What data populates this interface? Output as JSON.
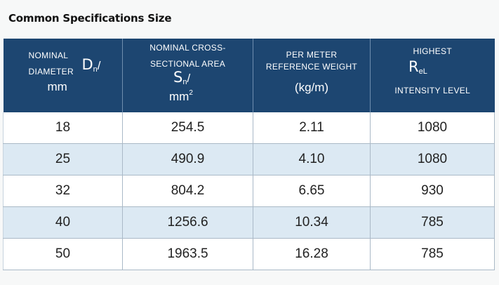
{
  "page": {
    "title": "Common Specifications Size"
  },
  "table": {
    "headers": {
      "diameter": {
        "line1": "NOMINAL",
        "line2": "DIAMETER",
        "symbol": "D",
        "symbol_sub": "n",
        "slash": "/",
        "unit": "mm"
      },
      "area": {
        "line1": "NOMINAL CROSS-",
        "line2": "SECTIONAL AREA",
        "symbol": "S",
        "symbol_sub": "n",
        "slash": "/",
        "unit": "mm",
        "unit_sup": "2"
      },
      "weight": {
        "line1": "PER METER",
        "line2": "REFERENCE WEIGHT",
        "unit": "(kg/m)"
      },
      "strength": {
        "line1": "HIGHEST",
        "symbol": "R",
        "symbol_sub": "eL",
        "line3": "INTENSITY LEVEL"
      }
    },
    "rows": [
      [
        "18",
        "254.5",
        "2.11",
        "1080"
      ],
      [
        "25",
        "490.9",
        "4.10",
        "1080"
      ],
      [
        "32",
        "804.2",
        "6.65",
        "930"
      ],
      [
        "40",
        "1256.6",
        "10.34",
        "785"
      ],
      [
        "50",
        "1963.5",
        "16.28",
        "785"
      ]
    ]
  },
  "colors": {
    "header_bg": "#1d4671",
    "row_alt_bg": "#dce9f3",
    "row_bg": "#ffffff"
  }
}
